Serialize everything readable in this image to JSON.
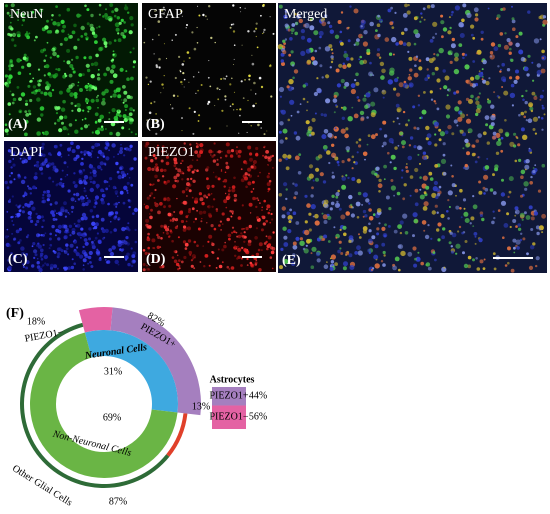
{
  "panels": [
    {
      "label": "(A)",
      "channel": "NeuN"
    },
    {
      "label": "(B)",
      "channel": "GFAP"
    },
    {
      "label": "(C)",
      "channel": "DAPI"
    },
    {
      "label": "(D)",
      "channel": "PIEZO1"
    },
    {
      "label": "(E)",
      "channel": "Merged"
    }
  ],
  "chart_data": {
    "type": "nested-pie",
    "panel_label": "(F)",
    "inner": {
      "categories": [
        "Neuronal Cells",
        "Non-Neuronal Cells"
      ],
      "values": [
        31,
        69
      ],
      "value_labels": [
        "31%",
        "69%"
      ],
      "colors": [
        "#3ea9e0",
        "#6ab545"
      ]
    },
    "neuronal": {
      "categories": [
        "PIEZO1+",
        "PIEZO1−"
      ],
      "values": [
        82,
        18
      ],
      "value_labels": [
        "82%",
        "18%"
      ],
      "colors": [
        "#a57fbf",
        "#e462a3"
      ]
    },
    "non_neuronal": {
      "categories": [
        "Astrocytes",
        "Other Glial Cells"
      ],
      "values": [
        13,
        87
      ],
      "value_labels": [
        "13%",
        "87%"
      ],
      "colors": [
        "#e0402a",
        "#2e6b37"
      ]
    },
    "astrocytes": {
      "categories": [
        "PIEZO1+",
        "PIEZO1−"
      ],
      "values": [
        44,
        56
      ],
      "value_labels": [
        "44%",
        "56%"
      ],
      "colors": [
        "#a57fbf",
        "#e462a3"
      ]
    }
  }
}
